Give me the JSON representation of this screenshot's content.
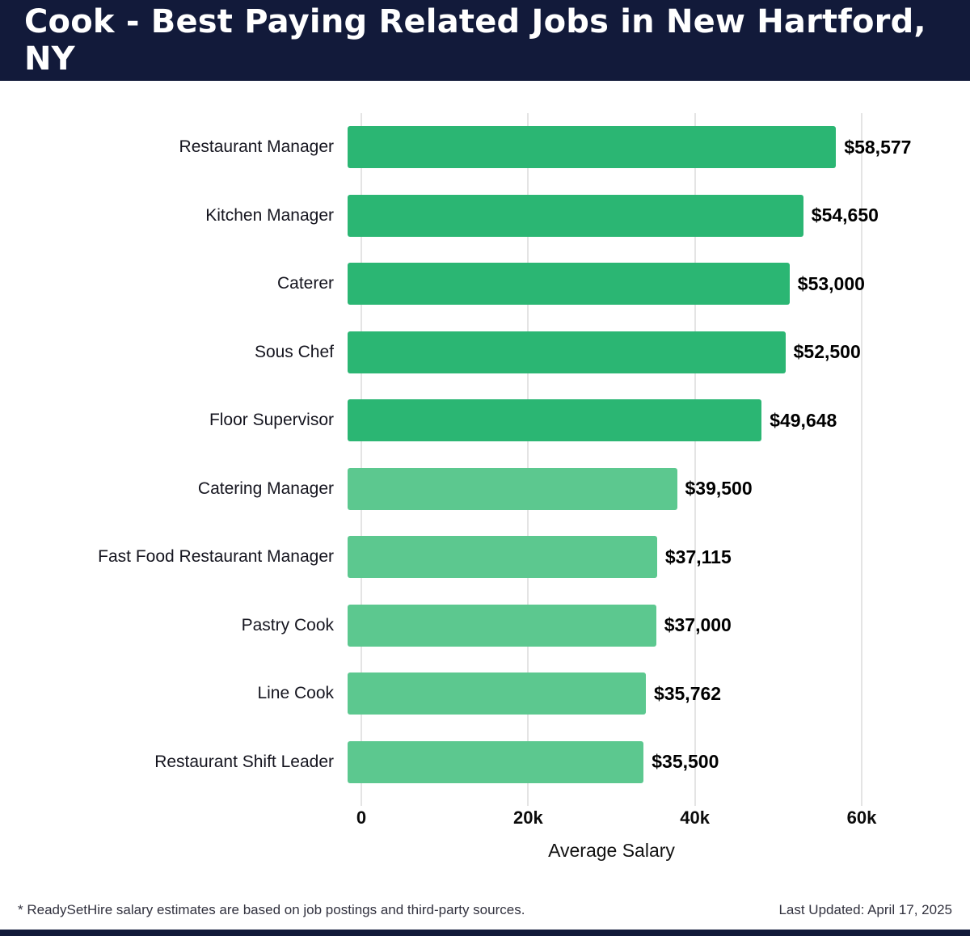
{
  "header": {
    "title": "Cook - Best Paying Related Jobs in New Hartford, NY"
  },
  "chart_data": {
    "type": "bar",
    "orientation": "horizontal",
    "title": "Cook - Best Paying Related Jobs in New Hartford, NY",
    "categories": [
      "Restaurant Manager",
      "Kitchen Manager",
      "Caterer",
      "Sous Chef",
      "Floor Supervisor",
      "Catering Manager",
      "Fast Food Restaurant Manager",
      "Pastry Cook",
      "Line Cook",
      "Restaurant Shift Leader"
    ],
    "values": [
      58577,
      54650,
      53000,
      52500,
      49648,
      39500,
      37115,
      37000,
      35762,
      35500
    ],
    "value_labels": [
      "$58,577",
      "$54,650",
      "$53,000",
      "$52,500",
      "$49,648",
      "$39,500",
      "$37,115",
      "$37,000",
      "$35,762",
      "$35,500"
    ],
    "bar_colors": [
      "#2bb673",
      "#2bb673",
      "#2bb673",
      "#2bb673",
      "#2bb673",
      "#5cc88f",
      "#5cc88f",
      "#5cc88f",
      "#5cc88f",
      "#5cc88f"
    ],
    "xlabel": "Average Salary",
    "xlim": [
      0,
      60000
    ],
    "xticks": {
      "values": [
        0,
        20000,
        40000,
        60000
      ],
      "labels": [
        "0",
        "20k",
        "40k",
        "60k"
      ]
    },
    "grid": "vertical",
    "legend": "none"
  },
  "footer": {
    "note": "* ReadySetHire salary estimates are based on job postings and third-party sources.",
    "updated": "Last Updated: April 17, 2025"
  },
  "colors": {
    "header_bg": "#121a3a",
    "bar_dark_green": "#2bb673",
    "bar_light_green": "#5cc88f",
    "gridline": "#e4e4e4"
  }
}
